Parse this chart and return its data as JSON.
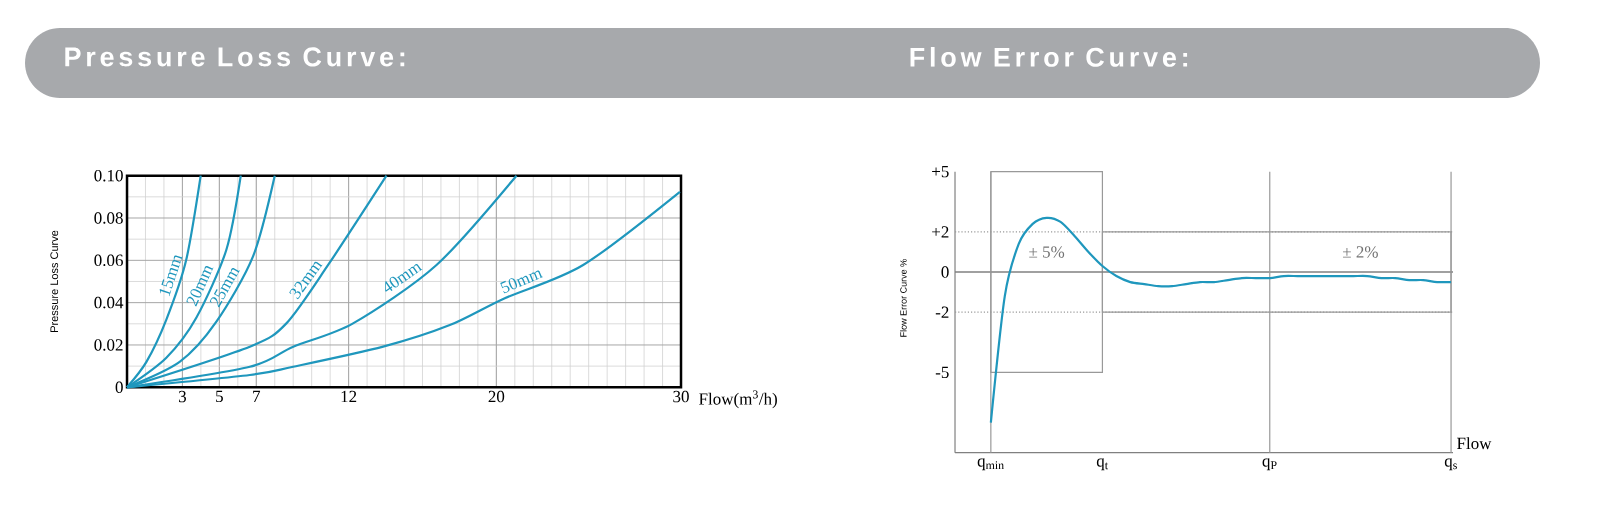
{
  "chart_data": [
    {
      "type": "line",
      "title": "Pressure Loss Curve:",
      "xlabel": "Flow(m$^{3}$/h)",
      "ylabel": "Pressure Loss Curve",
      "xlim": [
        0,
        30
      ],
      "ylim": [
        0,
        0.1
      ],
      "xticks": [
        3,
        5,
        7,
        12,
        20,
        30
      ],
      "yticks": [
        0,
        0.02,
        0.04,
        0.06,
        0.08,
        {
          "value": 0.1,
          "label": "0.10"
        }
      ],
      "grid": true,
      "series": [
        {
          "name": "15mm",
          "color": "#1f97bd",
          "x": [
            0,
            1.05,
            2.13,
            3.2,
            3.99
          ],
          "values": [
            0,
            0.012,
            0.032,
            0.06,
            0.1
          ]
        },
        {
          "name": "20mm",
          "color": "#1f97bd",
          "x": [
            0,
            2.13,
            3.76,
            5.38,
            6.16
          ],
          "values": [
            0,
            0.014,
            0.033,
            0.065,
            0.1
          ]
        },
        {
          "name": "25mm",
          "color": "#1f97bd",
          "x": [
            0,
            2.85,
            4.84,
            6.83,
            8.0
          ],
          "values": [
            0,
            0.012,
            0.031,
            0.062,
            0.1
          ]
        },
        {
          "name": "32mm",
          "color": "#1f97bd",
          "x": [
            0,
            6.65,
            8.63,
            10.89,
            14.05
          ],
          "values": [
            0,
            0.0192,
            0.0302,
            0.0578,
            0.1
          ]
        },
        {
          "name": "40mm",
          "color": "#1f97bd",
          "x": [
            0,
            6.65,
            9.0,
            12.24,
            16.76,
            21.09
          ],
          "values": [
            0,
            0.0097,
            0.0192,
            0.0302,
            0.0578,
            0.1
          ]
        },
        {
          "name": "50mm",
          "color": "#1f97bd",
          "x": [
            0,
            6.65,
            9.0,
            13.87,
            17.48,
            20.43,
            24.7,
            29.94
          ],
          "values": [
            0,
            0.0058,
            0.0097,
            0.0192,
            0.0294,
            0.042,
            0.0578,
            0.0924
          ]
        }
      ]
    },
    {
      "type": "line",
      "title": "Flow Error Curve:",
      "xlabel": "Flow",
      "ylabel": "Flow Error Curve %",
      "ylim": [
        -9,
        5
      ],
      "categories": [
        "q$_{min}$",
        null,
        null,
        null,
        null,
        null,
        null,
        null,
        "q$_{t}$",
        null,
        null,
        null,
        null,
        null,
        null,
        null,
        null,
        null,
        null,
        null,
        "q$_{P}$",
        null,
        null,
        null,
        null,
        null,
        null,
        null,
        null,
        null,
        null,
        null,
        null,
        "q$_{s}$"
      ],
      "yticks": [
        {
          "value": 5,
          "label": "+5"
        },
        {
          "value": 2,
          "label": "+2"
        },
        0,
        -2,
        -5
      ],
      "ref_lines": [
        {
          "axis": "y",
          "value": 0
        },
        {
          "axis": "y",
          "value": 2,
          "line_style": "dotted"
        },
        {
          "axis": "y",
          "value": -2,
          "line_style": "dotted"
        },
        {
          "axis": "x",
          "value": "q$_{min}$"
        },
        {
          "axis": "x",
          "value": "q$_{P}$"
        },
        {
          "axis": "x",
          "value": "q$_{s}$"
        }
      ],
      "annotations": [
        "± 5%",
        "± 2%"
      ],
      "series": [
        {
          "color": "#1f97bd",
          "values": [
            -7.5,
            -1.2,
            1.4,
            2.4,
            2.7,
            2.5,
            1.8,
            1.0,
            0.3,
            -0.2,
            -0.5,
            -0.6,
            -0.7,
            -0.7,
            -0.6,
            -0.5,
            -0.5,
            -0.4,
            -0.3,
            -0.3,
            -0.3,
            -0.2,
            -0.2,
            -0.2,
            -0.2,
            -0.2,
            -0.2,
            -0.2,
            -0.3,
            -0.3,
            -0.4,
            -0.4,
            -0.5,
            -0.5
          ]
        }
      ]
    }
  ]
}
